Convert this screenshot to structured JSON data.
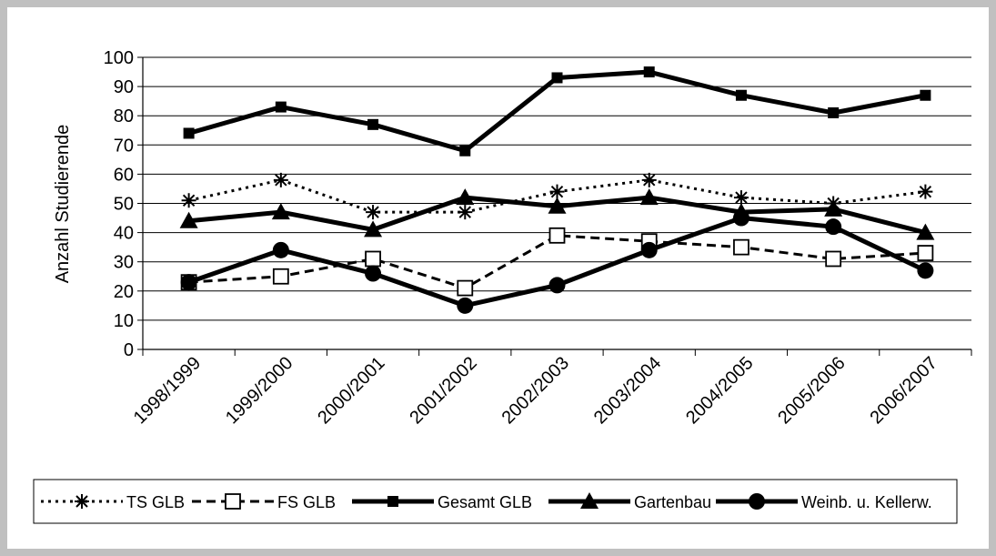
{
  "chart_data": {
    "type": "line",
    "title": "",
    "xlabel": "",
    "ylabel": "Anzahl Studierende",
    "ylim": [
      0,
      100
    ],
    "yticks": [
      0,
      10,
      20,
      30,
      40,
      50,
      60,
      70,
      80,
      90,
      100
    ],
    "grid": "horizontal",
    "legend_position": "bottom",
    "categories": [
      "1998/1999",
      "1999/2000",
      "2000/2001",
      "2001/2002",
      "2002/2003",
      "2003/2004",
      "2004/2005",
      "2005/2006",
      "2006/2007"
    ],
    "series": [
      {
        "name": "TS GLB",
        "values": [
          51,
          58,
          47,
          47,
          54,
          58,
          52,
          50,
          54
        ],
        "line": "dotted",
        "marker": "asterisk",
        "color": "#000000"
      },
      {
        "name": "FS GLB",
        "values": [
          23,
          25,
          31,
          21,
          39,
          37,
          35,
          31,
          33
        ],
        "line": "dashed",
        "marker": "open-square",
        "color": "#000000"
      },
      {
        "name": "Gesamt GLB",
        "values": [
          74,
          83,
          77,
          68,
          93,
          95,
          87,
          81,
          87
        ],
        "line": "solid",
        "marker": "filled-square",
        "color": "#000000"
      },
      {
        "name": "Gartenbau",
        "values": [
          44,
          47,
          41,
          52,
          49,
          52,
          47,
          48,
          40
        ],
        "line": "solid",
        "marker": "triangle",
        "color": "#000000"
      },
      {
        "name": "Weinb. u. Kellerw.",
        "values": [
          23,
          34,
          26,
          15,
          22,
          34,
          45,
          42,
          27
        ],
        "line": "solid",
        "marker": "circle",
        "color": "#000000"
      }
    ]
  }
}
